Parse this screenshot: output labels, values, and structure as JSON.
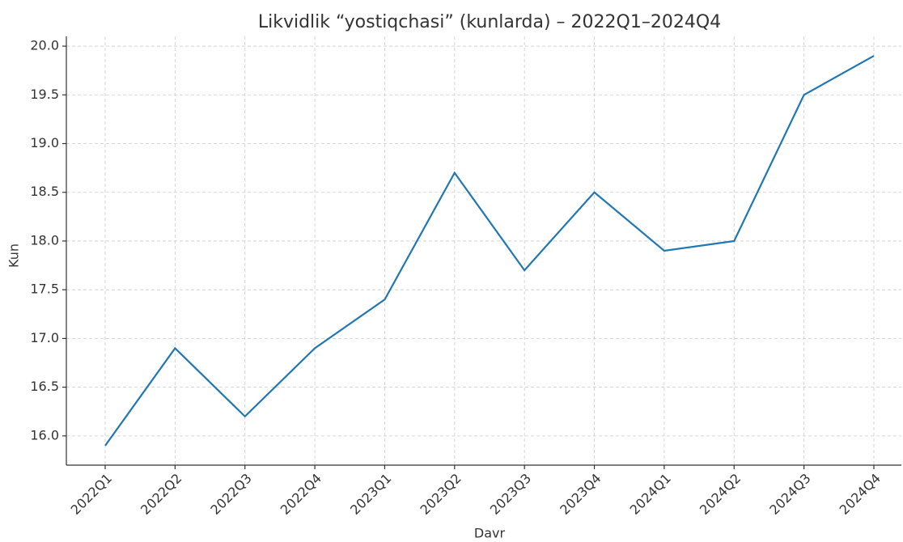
{
  "chart_data": {
    "type": "line",
    "title": "Likvidlik “yostiqchasi” (kunlarda) – 2022Q1–2024Q4",
    "x_label": "Davr",
    "y_label": "Kun",
    "categories": [
      "2022Q1",
      "2022Q2",
      "2022Q3",
      "2022Q4",
      "2023Q1",
      "2023Q2",
      "2023Q3",
      "2023Q4",
      "2024Q1",
      "2024Q2",
      "2024Q3",
      "2024Q4"
    ],
    "series": [
      {
        "name": "Kun",
        "color": "#1f77b4",
        "values": [
          15.9,
          16.9,
          16.2,
          16.9,
          17.4,
          18.7,
          17.7,
          18.5,
          17.9,
          18.0,
          19.5,
          19.9
        ]
      }
    ],
    "ylim": [
      15.7,
      20.1
    ],
    "yticks": [
      {
        "value": 16,
        "label": "16.0"
      },
      16.5,
      {
        "value": 17,
        "label": "17.0"
      },
      17.5,
      {
        "value": 18,
        "label": "18.0"
      },
      18.5,
      {
        "value": 19,
        "label": "19.0"
      },
      19.5,
      {
        "value": 20,
        "label": "20.0"
      }
    ],
    "grid": true
  }
}
